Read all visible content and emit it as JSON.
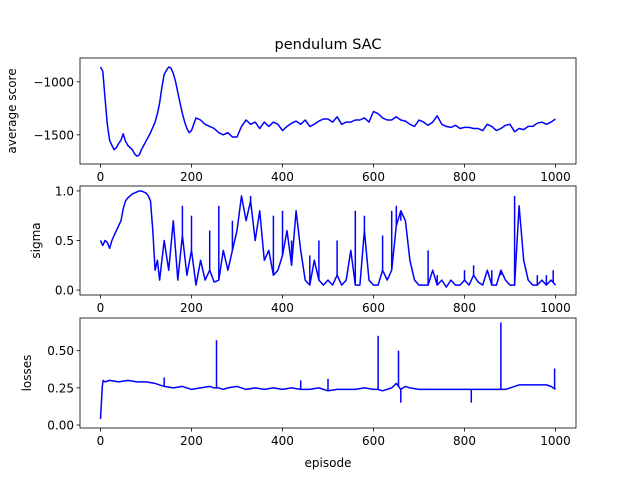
{
  "chart_data": {
    "type": "line",
    "title": "pendulum SAC",
    "xlabel": "episode",
    "line_color": "#0000ff",
    "subplots": [
      {
        "id": "score",
        "ylabel": "average score",
        "xlim": [
          -45,
          1045
        ],
        "ylim": [
          -1775,
          -775
        ],
        "xticks": [
          0,
          200,
          400,
          600,
          800,
          1000
        ],
        "yticks": [
          -1500,
          -1000
        ],
        "ytick_labels": [
          "−1500",
          "−1000"
        ],
        "series": [
          {
            "x": [
              0,
              5,
              10,
              15,
              20,
              25,
              30,
              35,
              40,
              45,
              50,
              55,
              60,
              65,
              70,
              75,
              80,
              85,
              90,
              95,
              100,
              105,
              110,
              115,
              120,
              125,
              130,
              135,
              140,
              145,
              150,
              155,
              160,
              165,
              170,
              175,
              180,
              185,
              190,
              195,
              200,
              210,
              220,
              230,
              240,
              250,
              260,
              270,
              280,
              290,
              300,
              310,
              320,
              330,
              340,
              350,
              360,
              370,
              380,
              390,
              400,
              410,
              420,
              430,
              440,
              450,
              460,
              470,
              480,
              490,
              500,
              510,
              520,
              530,
              540,
              550,
              560,
              570,
              580,
              590,
              600,
              610,
              620,
              630,
              640,
              650,
              660,
              670,
              680,
              690,
              700,
              710,
              720,
              730,
              740,
              750,
              760,
              770,
              780,
              790,
              800,
              810,
              820,
              830,
              840,
              850,
              860,
              870,
              880,
              890,
              900,
              910,
              920,
              930,
              940,
              950,
              960,
              970,
              980,
              990,
              1000
            ],
            "y": [
              -860,
              -900,
              -1150,
              -1400,
              -1550,
              -1600,
              -1640,
              -1620,
              -1580,
              -1550,
              -1490,
              -1560,
              -1600,
              -1620,
              -1640,
              -1680,
              -1700,
              -1690,
              -1640,
              -1600,
              -1560,
              -1520,
              -1480,
              -1430,
              -1380,
              -1300,
              -1200,
              -1050,
              -930,
              -890,
              -860,
              -870,
              -920,
              -1000,
              -1100,
              -1200,
              -1300,
              -1380,
              -1440,
              -1480,
              -1460,
              -1340,
              -1360,
              -1400,
              -1420,
              -1440,
              -1480,
              -1500,
              -1480,
              -1520,
              -1520,
              -1420,
              -1360,
              -1400,
              -1380,
              -1440,
              -1380,
              -1420,
              -1380,
              -1400,
              -1460,
              -1420,
              -1390,
              -1370,
              -1400,
              -1360,
              -1420,
              -1400,
              -1370,
              -1350,
              -1350,
              -1380,
              -1330,
              -1400,
              -1380,
              -1380,
              -1360,
              -1360,
              -1340,
              -1380,
              -1280,
              -1300,
              -1340,
              -1360,
              -1360,
              -1330,
              -1360,
              -1370,
              -1400,
              -1420,
              -1360,
              -1380,
              -1410,
              -1380,
              -1320,
              -1400,
              -1420,
              -1430,
              -1410,
              -1440,
              -1430,
              -1430,
              -1440,
              -1440,
              -1460,
              -1400,
              -1420,
              -1460,
              -1440,
              -1410,
              -1400,
              -1470,
              -1440,
              -1450,
              -1420,
              -1420,
              -1390,
              -1380,
              -1400,
              -1380,
              -1350
            ]
          }
        ]
      },
      {
        "id": "sigma",
        "ylabel": "sigma",
        "xlim": [
          -45,
          1045
        ],
        "ylim": [
          -0.05,
          1.05
        ],
        "xticks": [
          0,
          200,
          400,
          600,
          800,
          1000
        ],
        "yticks": [
          0.0,
          0.5,
          1.0
        ],
        "ytick_labels": [
          "0.0",
          "0.5",
          "1.0"
        ],
        "series": [
          {
            "x": [
              0,
              5,
              10,
              15,
              20,
              25,
              30,
              35,
              40,
              45,
              50,
              55,
              60,
              65,
              70,
              75,
              80,
              85,
              90,
              95,
              100,
              105,
              110,
              115,
              120,
              125,
              130,
              140,
              150,
              160,
              170,
              180,
              190,
              200,
              210,
              220,
              230,
              240,
              250,
              260,
              270,
              280,
              290,
              300,
              310,
              320,
              330,
              340,
              350,
              360,
              370,
              380,
              390,
              400,
              410,
              420,
              430,
              440,
              450,
              460,
              470,
              480,
              490,
              500,
              510,
              520,
              530,
              540,
              550,
              560,
              570,
              580,
              590,
              600,
              610,
              620,
              630,
              640,
              650,
              660,
              670,
              680,
              690,
              700,
              710,
              720,
              730,
              740,
              750,
              760,
              770,
              780,
              790,
              800,
              810,
              820,
              830,
              840,
              850,
              860,
              870,
              880,
              890,
              900,
              910,
              920,
              930,
              940,
              950,
              960,
              970,
              980,
              990,
              1000
            ],
            "y": [
              0.5,
              0.45,
              0.5,
              0.48,
              0.42,
              0.5,
              0.55,
              0.6,
              0.65,
              0.7,
              0.82,
              0.9,
              0.93,
              0.95,
              0.97,
              0.98,
              0.99,
              1.0,
              1.0,
              0.99,
              0.98,
              0.95,
              0.9,
              0.6,
              0.2,
              0.3,
              0.1,
              0.5,
              0.2,
              0.7,
              0.1,
              0.55,
              0.15,
              0.4,
              0.05,
              0.3,
              0.1,
              0.2,
              0.08,
              0.1,
              0.4,
              0.2,
              0.4,
              0.6,
              0.95,
              0.7,
              0.9,
              0.5,
              0.8,
              0.3,
              0.4,
              0.15,
              0.2,
              0.35,
              0.6,
              0.25,
              0.8,
              0.4,
              0.1,
              0.05,
              0.3,
              0.1,
              0.05,
              0.1,
              0.05,
              0.15,
              0.05,
              0.1,
              0.4,
              0.05,
              0.05,
              0.6,
              0.1,
              0.05,
              0.05,
              0.2,
              0.1,
              0.2,
              0.65,
              0.8,
              0.7,
              0.3,
              0.1,
              0.05,
              0.05,
              0.05,
              0.2,
              0.05,
              0.1,
              0.03,
              0.1,
              0.05,
              0.05,
              0.1,
              0.05,
              0.15,
              0.08,
              0.05,
              0.2,
              0.05,
              0.05,
              0.2,
              0.1,
              0.05,
              0.05,
              0.85,
              0.3,
              0.1,
              0.05,
              0.05,
              0.1,
              0.05,
              0.1,
              0.05
            ],
            "spikes": [
              [
                180,
                0.85
              ],
              [
                200,
                0.75
              ],
              [
                240,
                0.6
              ],
              [
                260,
                0.85
              ],
              [
                290,
                0.7
              ],
              [
                330,
                0.95
              ],
              [
                380,
                0.75
              ],
              [
                400,
                0.8
              ],
              [
                420,
                0.5
              ],
              [
                430,
                0.8
              ],
              [
                460,
                0.35
              ],
              [
                480,
                0.5
              ],
              [
                520,
                0.5
              ],
              [
                550,
                0.4
              ],
              [
                560,
                0.8
              ],
              [
                580,
                0.75
              ],
              [
                620,
                0.55
              ],
              [
                640,
                0.8
              ],
              [
                650,
                0.85
              ],
              [
                660,
                0.7
              ],
              [
                720,
                0.4
              ],
              [
                740,
                0.15
              ],
              [
                800,
                0.2
              ],
              [
                820,
                0.25
              ],
              [
                860,
                0.2
              ],
              [
                880,
                0.15
              ],
              [
                910,
                0.95
              ],
              [
                920,
                0.85
              ],
              [
                960,
                0.15
              ],
              [
                980,
                0.15
              ],
              [
                995,
                0.2
              ]
            ]
          }
        ]
      },
      {
        "id": "losses",
        "ylabel": "losses",
        "xlim": [
          -45,
          1045
        ],
        "ylim": [
          -0.02,
          0.72
        ],
        "xticks": [
          0,
          200,
          400,
          600,
          800,
          1000
        ],
        "yticks": [
          0.0,
          0.25,
          0.5
        ],
        "ytick_labels": [
          "0.00",
          "0.25",
          "0.50"
        ],
        "xtick_labels_visible": true,
        "series": [
          {
            "x": [
              0,
              2,
              4,
              6,
              10,
              20,
              40,
              60,
              80,
              100,
              120,
              140,
              160,
              180,
              200,
              220,
              240,
              250,
              260,
              270,
              280,
              300,
              320,
              340,
              360,
              380,
              400,
              420,
              440,
              460,
              480,
              500,
              520,
              540,
              560,
              580,
              600,
              610,
              620,
              640,
              650,
              660,
              670,
              680,
              700,
              720,
              740,
              760,
              780,
              800,
              820,
              840,
              860,
              875,
              880,
              890,
              900,
              920,
              940,
              960,
              980,
              990,
              995,
              1000
            ],
            "y": [
              0.04,
              0.15,
              0.26,
              0.3,
              0.29,
              0.3,
              0.29,
              0.3,
              0.29,
              0.29,
              0.28,
              0.26,
              0.25,
              0.26,
              0.24,
              0.25,
              0.26,
              0.25,
              0.25,
              0.24,
              0.25,
              0.26,
              0.24,
              0.25,
              0.24,
              0.25,
              0.24,
              0.25,
              0.24,
              0.24,
              0.25,
              0.23,
              0.24,
              0.24,
              0.24,
              0.25,
              0.24,
              0.24,
              0.23,
              0.25,
              0.28,
              0.24,
              0.26,
              0.25,
              0.24,
              0.24,
              0.24,
              0.24,
              0.24,
              0.24,
              0.24,
              0.24,
              0.24,
              0.24,
              0.24,
              0.24,
              0.25,
              0.27,
              0.27,
              0.27,
              0.27,
              0.26,
              0.25,
              0.24
            ],
            "spikes": [
              [
                255,
                0.57
              ],
              [
                610,
                0.6
              ],
              [
                655,
                0.5
              ],
              [
                660,
                0.15
              ],
              [
                815,
                0.15
              ],
              [
                880,
                0.69
              ],
              [
                998,
                0.38
              ],
              [
                140,
                0.32
              ],
              [
                440,
                0.3
              ],
              [
                500,
                0.31
              ]
            ]
          }
        ]
      }
    ]
  }
}
